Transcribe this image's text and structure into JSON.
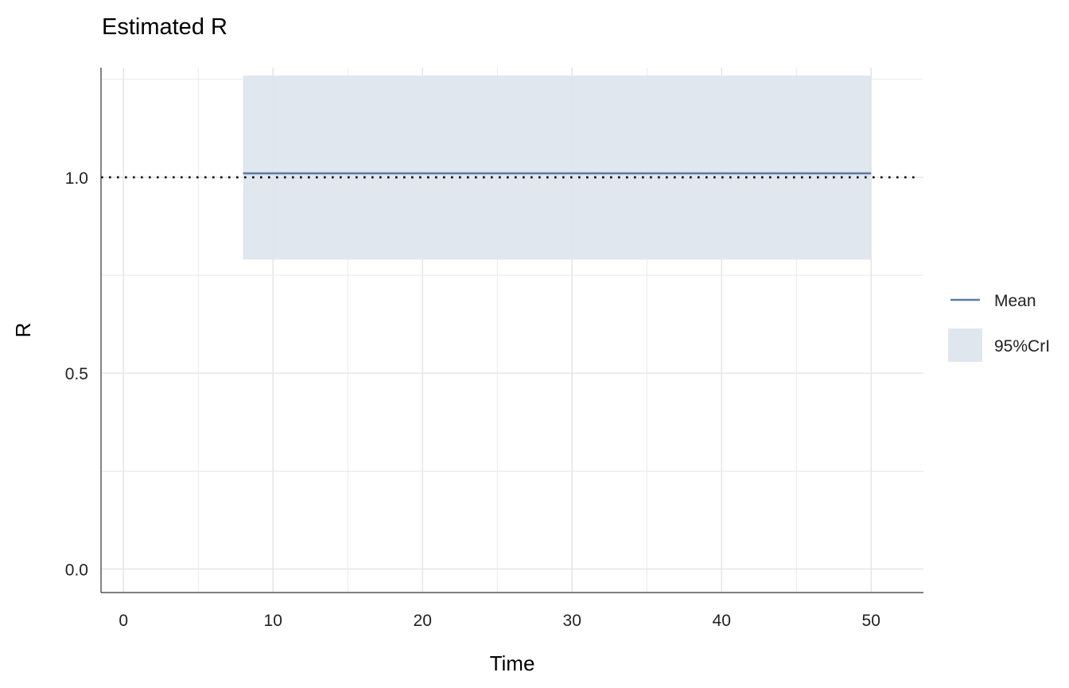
{
  "chart_data": {
    "type": "line",
    "title": "Estimated R",
    "xlabel": "Time",
    "ylabel": "R",
    "xlim": [
      -1.5,
      53.5
    ],
    "ylim": [
      -0.06,
      1.28
    ],
    "x_ticks": [
      0,
      10,
      20,
      30,
      40,
      50
    ],
    "y_ticks": [
      0.0,
      0.5,
      1.0
    ],
    "x_minor_ticks": [
      5,
      15,
      25,
      35,
      45
    ],
    "y_minor_ticks": [
      0.25,
      0.75,
      1.25
    ],
    "grid": true,
    "legend_position": "right",
    "reference_line": {
      "y": 1.0,
      "style": "dotted"
    },
    "series": [
      {
        "name": "Mean",
        "kind": "line",
        "x": [
          8,
          50
        ],
        "y": [
          1.01,
          1.01
        ]
      },
      {
        "name": "95%CrI",
        "kind": "band",
        "x": [
          8,
          50
        ],
        "lower": [
          0.79,
          0.79
        ],
        "upper": [
          1.26,
          1.26
        ]
      }
    ],
    "colors": {
      "mean_line": "#5b7ca6",
      "band_fill": "#dfe6ee",
      "grid": "#e4e4e4",
      "axis": "#333333",
      "reference": "#000000"
    }
  }
}
